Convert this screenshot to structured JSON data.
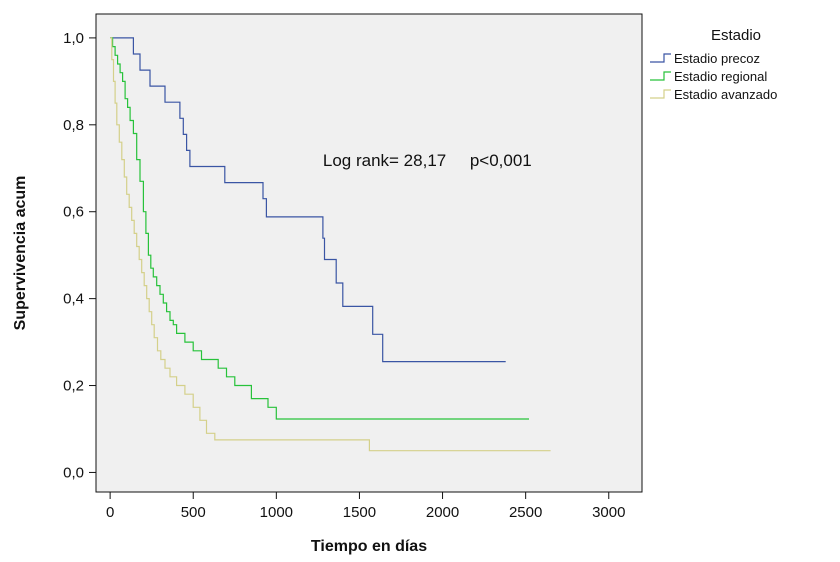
{
  "chart_data": {
    "type": "line",
    "step": true,
    "xlabel": "Tiempo en días",
    "ylabel": "Supervivencia acum",
    "xlim": [
      -85,
      3200
    ],
    "ylim": [
      -0.045,
      1.055
    ],
    "xticks": [
      0,
      500,
      1000,
      1500,
      2000,
      2500,
      3000
    ],
    "xtick_labels": [
      "0",
      "500",
      "1000",
      "1500",
      "2000",
      "2500",
      "3000"
    ],
    "yticks": [
      0.0,
      0.2,
      0.4,
      0.6,
      0.8,
      1.0
    ],
    "ytick_labels": [
      "0,0",
      "0,2",
      "0,4",
      "0,6",
      "0,8",
      "1,0"
    ],
    "plot_background": "#f0f0f0",
    "grid": false,
    "legend": {
      "title": "Estadio",
      "position": "outside-right-top"
    },
    "annotation": {
      "text": "Log rank= 28,17     p<0,001",
      "x": 1280,
      "y": 0.705
    },
    "series": [
      {
        "name": "Estadio precoz",
        "color": "#3a55a4",
        "x": [
          0,
          140,
          180,
          240,
          330,
          420,
          440,
          460,
          480,
          690,
          920,
          940,
          1280,
          1290,
          1360,
          1400,
          1580,
          1640,
          2380
        ],
        "y": [
          1.0,
          0.963,
          0.926,
          0.889,
          0.852,
          0.815,
          0.778,
          0.741,
          0.704,
          0.667,
          0.63,
          0.588,
          0.539,
          0.49,
          0.436,
          0.382,
          0.318,
          0.255,
          0.255
        ]
      },
      {
        "name": "Estadio regional",
        "color": "#27c23a",
        "x": [
          0,
          15,
          30,
          45,
          60,
          75,
          90,
          105,
          120,
          140,
          160,
          180,
          200,
          215,
          230,
          245,
          260,
          280,
          300,
          320,
          340,
          360,
          380,
          400,
          450,
          500,
          550,
          650,
          700,
          750,
          850,
          950,
          1000,
          2520
        ],
        "y": [
          1.0,
          0.98,
          0.96,
          0.94,
          0.92,
          0.9,
          0.86,
          0.84,
          0.81,
          0.78,
          0.72,
          0.67,
          0.6,
          0.55,
          0.5,
          0.47,
          0.45,
          0.43,
          0.41,
          0.39,
          0.37,
          0.35,
          0.34,
          0.32,
          0.3,
          0.28,
          0.26,
          0.24,
          0.22,
          0.2,
          0.17,
          0.15,
          0.123,
          0.123
        ]
      },
      {
        "name": "Estadio avanzado",
        "color": "#d4d08a",
        "x": [
          0,
          10,
          20,
          30,
          40,
          55,
          70,
          85,
          100,
          115,
          130,
          145,
          160,
          175,
          190,
          205,
          220,
          235,
          250,
          265,
          285,
          305,
          330,
          360,
          400,
          450,
          500,
          540,
          580,
          630,
          700,
          1560,
          2650
        ],
        "y": [
          1.0,
          0.95,
          0.9,
          0.85,
          0.8,
          0.76,
          0.72,
          0.68,
          0.64,
          0.61,
          0.58,
          0.55,
          0.52,
          0.49,
          0.46,
          0.43,
          0.4,
          0.37,
          0.34,
          0.31,
          0.28,
          0.26,
          0.24,
          0.22,
          0.2,
          0.18,
          0.15,
          0.12,
          0.09,
          0.075,
          0.075,
          0.05,
          0.05
        ]
      }
    ]
  }
}
